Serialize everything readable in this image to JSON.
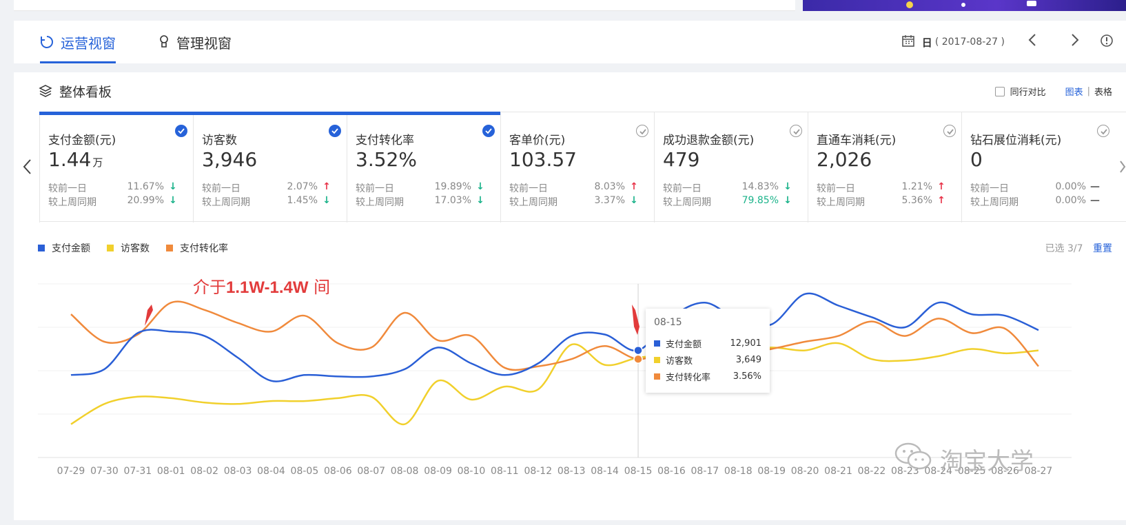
{
  "nav": {
    "tabs": [
      {
        "label": "运营视窗",
        "active": true
      },
      {
        "label": "管理视窗",
        "active": false
      }
    ],
    "date_day": "日",
    "date_value": "( 2017-08-27 )"
  },
  "panel": {
    "title": "整体看板",
    "compare_label": "同行对比",
    "view_chart": "图表",
    "view_sep": "|",
    "view_table": "表格"
  },
  "metrics": [
    {
      "title": "支付金额(元)",
      "value": "1.44",
      "unit": "万",
      "selected": true,
      "r1_label": "较前一日",
      "r1_val": "11.67%",
      "r1_trend": "down",
      "r2_label": "较上周同期",
      "r2_val": "20.99%",
      "r2_trend": "down"
    },
    {
      "title": "访客数",
      "value": "3,946",
      "unit": "",
      "selected": true,
      "r1_label": "较前一日",
      "r1_val": "2.07%",
      "r1_trend": "up",
      "r2_label": "较上周同期",
      "r2_val": "1.45%",
      "r2_trend": "down"
    },
    {
      "title": "支付转化率",
      "value": "3.52%",
      "unit": "",
      "selected": true,
      "r1_label": "较前一日",
      "r1_val": "19.89%",
      "r1_trend": "down",
      "r2_label": "较上周同期",
      "r2_val": "17.03%",
      "r2_trend": "down"
    },
    {
      "title": "客单价(元)",
      "value": "103.57",
      "unit": "",
      "selected": false,
      "r1_label": "较前一日",
      "r1_val": "8.03%",
      "r1_trend": "up",
      "r2_label": "较上周同期",
      "r2_val": "3.37%",
      "r2_trend": "down"
    },
    {
      "title": "成功退款金额(元)",
      "value": "479",
      "unit": "",
      "selected": false,
      "r1_label": "较前一日",
      "r1_val": "14.83%",
      "r1_trend": "down",
      "r2_label": "较上周同期",
      "r2_val": "79.85%",
      "r2_trend": "down"
    },
    {
      "title": "直通车消耗(元)",
      "value": "2,026",
      "unit": "",
      "selected": false,
      "r1_label": "较前一日",
      "r1_val": "1.21%",
      "r1_trend": "up",
      "r2_label": "较上周同期",
      "r2_val": "5.36%",
      "r2_trend": "up"
    },
    {
      "title": "钻石展位消耗(元)",
      "value": "0",
      "unit": "",
      "selected": false,
      "r1_label": "较前一日",
      "r1_val": "0.00%",
      "r1_trend": "flat",
      "r2_label": "较上周同期",
      "r2_val": "0.00%",
      "r2_trend": "flat"
    }
  ],
  "legend": {
    "selected_count": "已选 3/7",
    "reset": "重置"
  },
  "annotation": {
    "prefix": "介于",
    "bold": "1.1W-1.4W",
    "suffix": " 间"
  },
  "tooltip": {
    "title": "08-15",
    "rows": [
      {
        "name": "支付金额",
        "value": "12,901"
      },
      {
        "name": "访客数",
        "value": "3,649"
      },
      {
        "name": "支付转化率",
        "value": "3.56%"
      }
    ]
  },
  "watermark": "淘宝大学",
  "colors": {
    "accent": "#2662d9",
    "series_pay": "#2a5fd6",
    "series_visitors": "#f1d02c",
    "series_conversion": "#f08a3c",
    "up": "#e8344a",
    "down": "#1bb38a"
  },
  "chart_data": {
    "type": "line",
    "x": [
      "07-29",
      "07-30",
      "07-31",
      "08-01",
      "08-02",
      "08-03",
      "08-04",
      "08-05",
      "08-06",
      "08-07",
      "08-08",
      "08-09",
      "08-10",
      "08-11",
      "08-12",
      "08-13",
      "08-14",
      "08-15",
      "08-16",
      "08-17",
      "08-18",
      "08-19",
      "08-20",
      "08-21",
      "08-22",
      "08-23",
      "08-24",
      "08-25",
      "08-26",
      "08-27"
    ],
    "series": [
      {
        "name": "支付金额",
        "color": "#2a5fd6",
        "values": [
          0.57,
          0.61,
          0.86,
          0.87,
          0.84,
          0.69,
          0.53,
          0.57,
          0.56,
          0.56,
          0.61,
          0.76,
          0.65,
          0.57,
          0.65,
          0.84,
          0.85,
          0.74,
          0.97,
          1.07,
          0.95,
          0.92,
          1.13,
          1.05,
          0.97,
          0.9,
          1.07,
          0.99,
          0.98,
          0.88
        ],
        "hover_value": "12,901"
      },
      {
        "name": "访客数",
        "color": "#f1d02c",
        "values": [
          0.23,
          0.37,
          0.42,
          0.41,
          0.38,
          0.37,
          0.39,
          0.39,
          0.41,
          0.42,
          0.23,
          0.53,
          0.4,
          0.49,
          0.47,
          0.78,
          0.64,
          0.69,
          0.71,
          0.73,
          0.73,
          0.76,
          0.74,
          0.79,
          0.68,
          0.67,
          0.7,
          0.75,
          0.72,
          0.74
        ],
        "hover_value": "3,649"
      },
      {
        "name": "支付转化率",
        "color": "#f08a3c",
        "values": [
          0.99,
          0.8,
          0.85,
          1.07,
          1.02,
          0.93,
          0.87,
          0.98,
          0.79,
          0.76,
          1.0,
          0.81,
          0.84,
          0.62,
          0.63,
          0.68,
          0.77,
          0.68,
          0.74,
          0.7,
          0.71,
          0.75,
          0.8,
          0.84,
          0.94,
          0.84,
          0.96,
          0.86,
          0.89,
          0.63
        ],
        "hover_value": "3.56%"
      }
    ],
    "highlight_x": "08-15",
    "grid": true,
    "legend": "top-left"
  }
}
